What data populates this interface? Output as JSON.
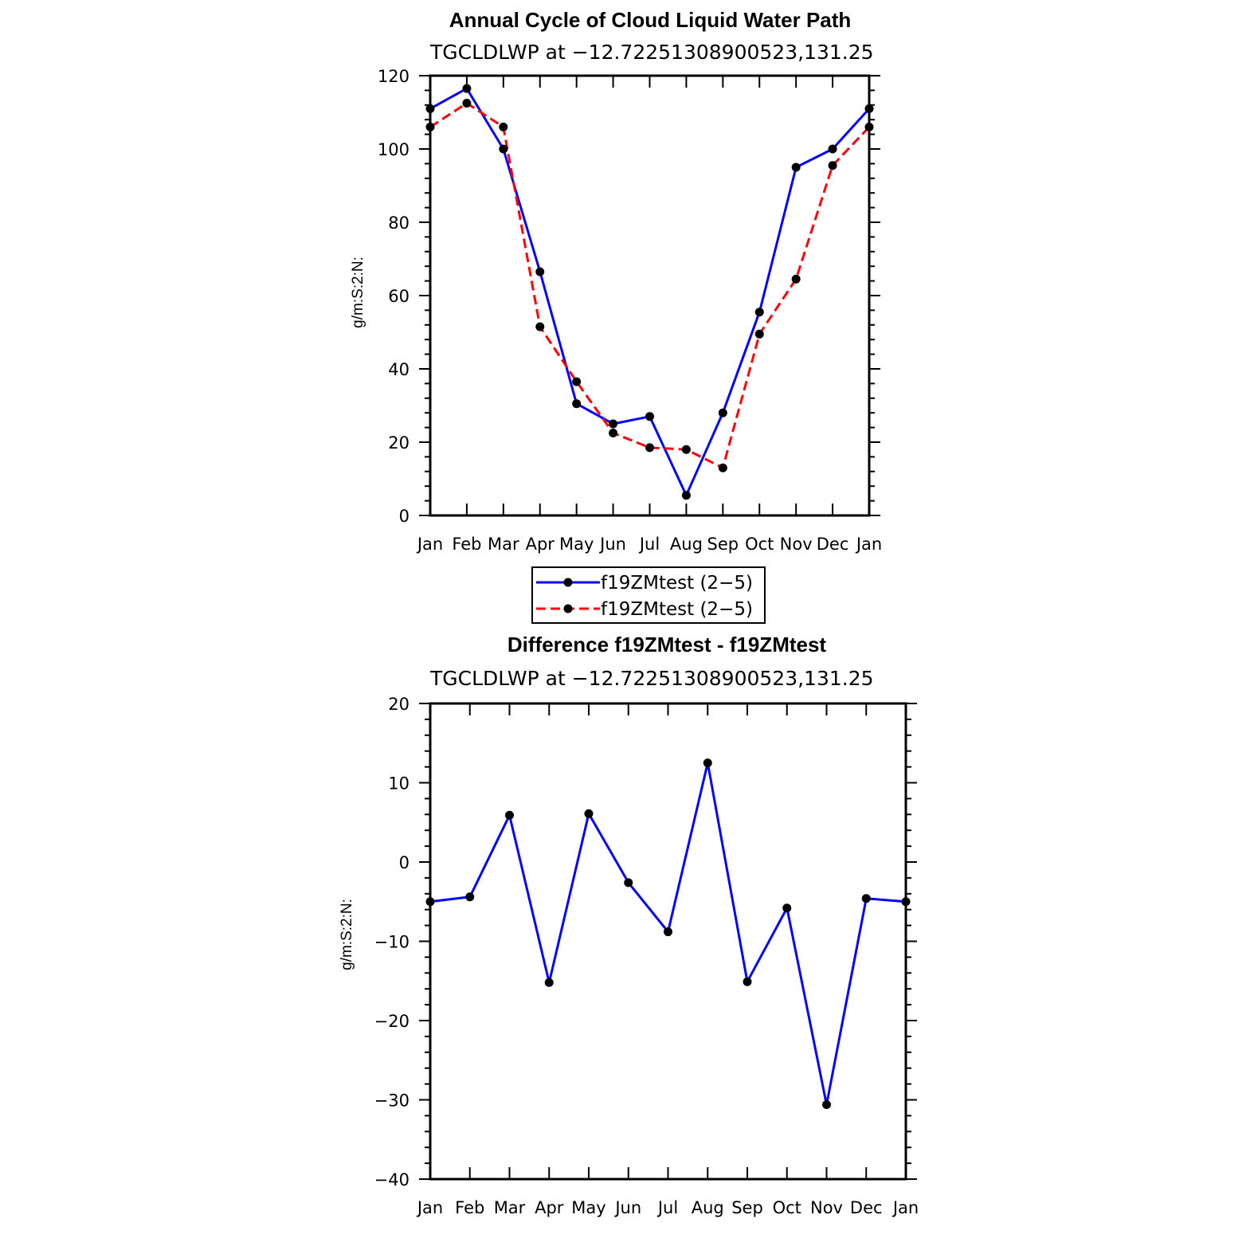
{
  "chart_data": [
    {
      "type": "line",
      "title": "Annual Cycle of Cloud Liquid Water Path",
      "subtitle": "TGCLDLWP at −12.72251308900523,131.25",
      "xlabel": "",
      "ylabel": "g/m:S:2:N:",
      "categories": [
        "Jan",
        "Feb",
        "Mar",
        "Apr",
        "May",
        "Jun",
        "Jul",
        "Aug",
        "Sep",
        "Oct",
        "Nov",
        "Dec",
        "Jan"
      ],
      "ylim": [
        0,
        120
      ],
      "yticks": [
        "0",
        "20",
        "40",
        "60",
        "80",
        "100",
        "120"
      ],
      "grid": false,
      "legend_position": "bottom",
      "series": [
        {
          "name": "f19ZMtest (2−5)",
          "color": "#0000ff",
          "style": "solid",
          "values": [
            111,
            116.5,
            100,
            66.5,
            30.5,
            25,
            27,
            5.5,
            28,
            55.5,
            95,
            100,
            111
          ]
        },
        {
          "name": "f19ZMtest (2−5)",
          "color": "#ff0000",
          "style": "dashed",
          "values": [
            106,
            112.5,
            106,
            51.5,
            36.5,
            22.5,
            18.5,
            18,
            13,
            49.5,
            64.5,
            95.5,
            106
          ]
        }
      ]
    },
    {
      "type": "line",
      "title": "Difference f19ZMtest - f19ZMtest",
      "subtitle": "TGCLDLWP at −12.72251308900523,131.25",
      "xlabel": "",
      "ylabel": "g/m:S:2:N:",
      "categories": [
        "Jan",
        "Feb",
        "Mar",
        "Apr",
        "May",
        "Jun",
        "Jul",
        "Aug",
        "Sep",
        "Oct",
        "Nov",
        "Dec",
        "Jan"
      ],
      "ylim": [
        -40,
        20
      ],
      "yticks": [
        "−40",
        "−30",
        "−20",
        "−10",
        "0",
        "10",
        "20"
      ],
      "grid": false,
      "series": [
        {
          "color": "#0000ff",
          "style": "solid",
          "values": [
            -5,
            -4.4,
            5.9,
            -15.2,
            6.1,
            -2.6,
            -8.8,
            12.5,
            -15.1,
            -5.8,
            -30.6,
            -4.6,
            -5
          ]
        }
      ]
    }
  ]
}
